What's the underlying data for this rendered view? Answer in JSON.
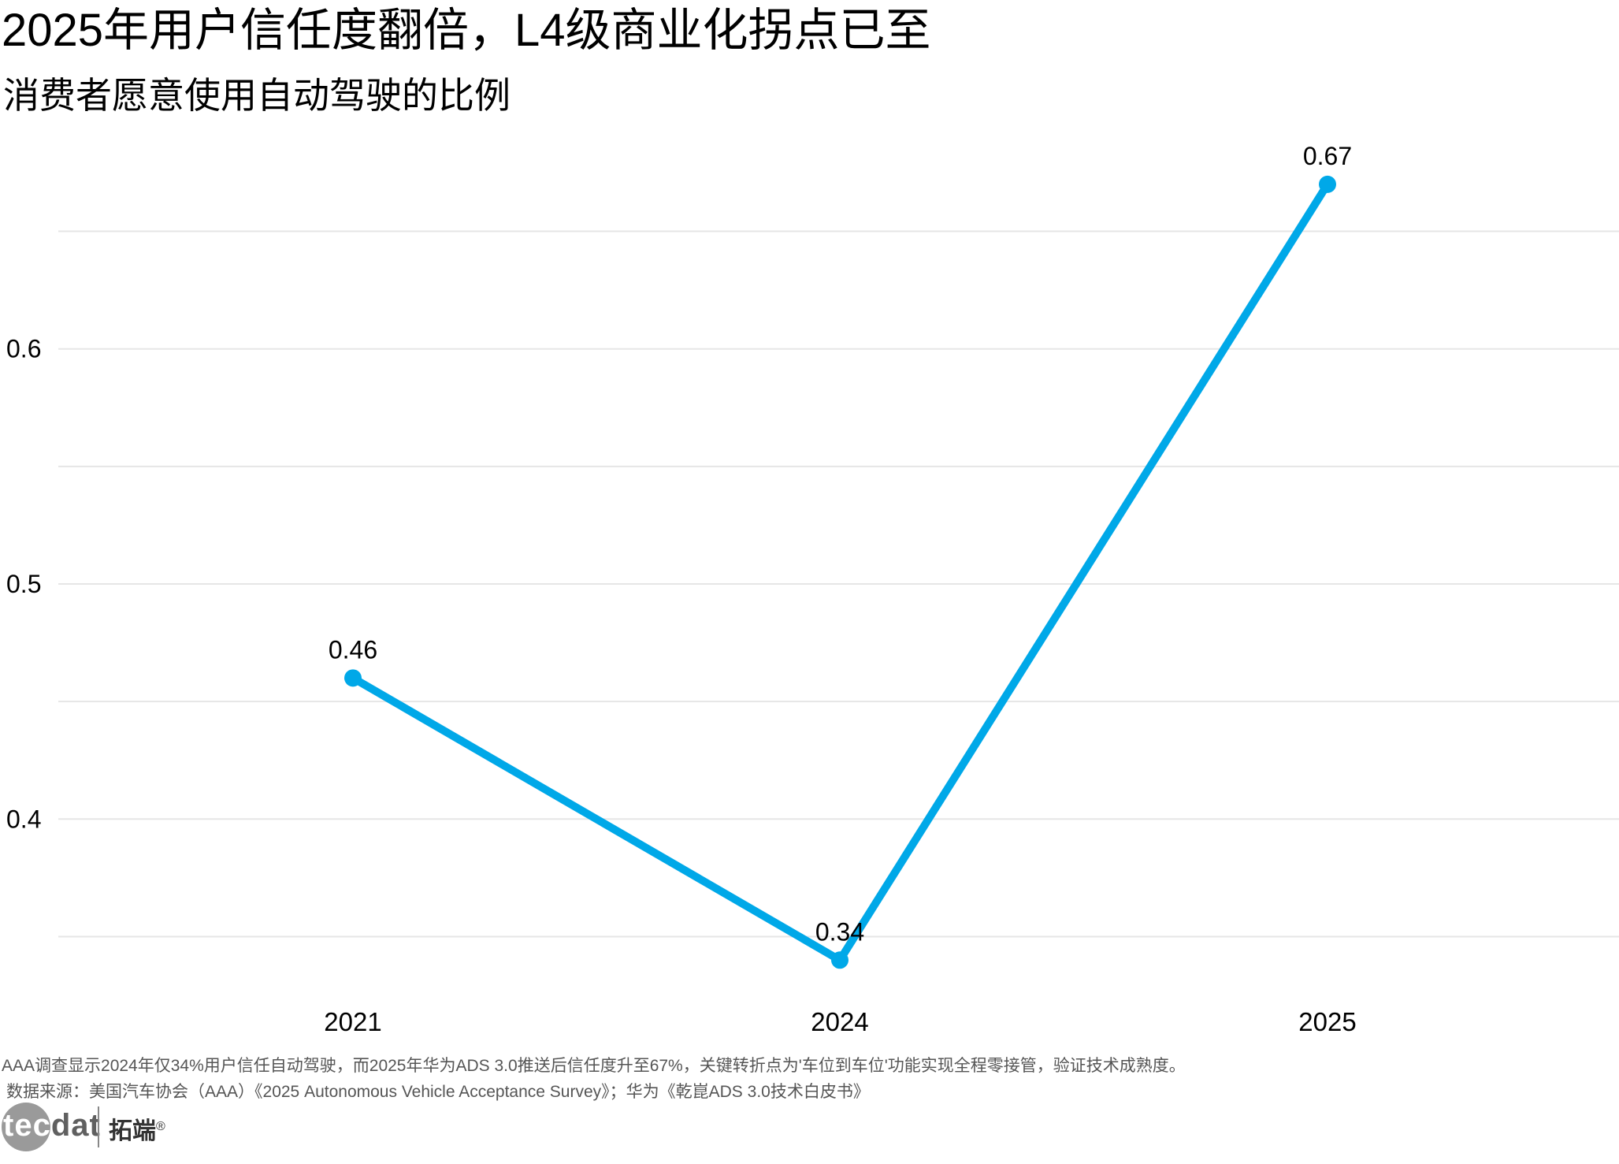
{
  "title": "2025年用户信任度翻倍，L4级商业化拐点已至",
  "subtitle": "消费者愿意使用自动驾驶的比例",
  "note": "AAA调查显示2024年仅34%用户信任自动驾驶，而2025年华为ADS 3.0推送后信任度升至67%，关键转折点为'车位到车位'功能实现全程零接管，验证技术成熟度。",
  "source": "数据来源：美国汽车协会（AAA）《2025 Autonomous Vehicle Acceptance Survey》；华为《乾崑ADS 3.0技术白皮书》",
  "logo": {
    "brand_en": "tecdat",
    "brand_en_a": "tec",
    "brand_en_b": "dat",
    "brand_cn": "拓端",
    "registered": "®"
  },
  "colors": {
    "line": "#00A8E8",
    "grid": "#e6e6e6",
    "text": "#000000",
    "muted": "#555555"
  },
  "chart_data": {
    "type": "line",
    "categories": [
      "2021",
      "2024",
      "2025"
    ],
    "values": [
      0.46,
      0.34,
      0.67
    ],
    "data_labels": [
      "0.46",
      "0.34",
      "0.67"
    ],
    "ylim": [
      0.3305,
      0.7
    ],
    "y_ticks": [
      0.4,
      0.5,
      0.6
    ],
    "y_tick_labels": [
      "0.4",
      "0.5",
      "0.6"
    ],
    "y_minor_ticks": [
      0.35,
      0.45,
      0.55,
      0.65
    ],
    "grid": true,
    "legend": "none",
    "xlabel": "",
    "ylabel": ""
  }
}
